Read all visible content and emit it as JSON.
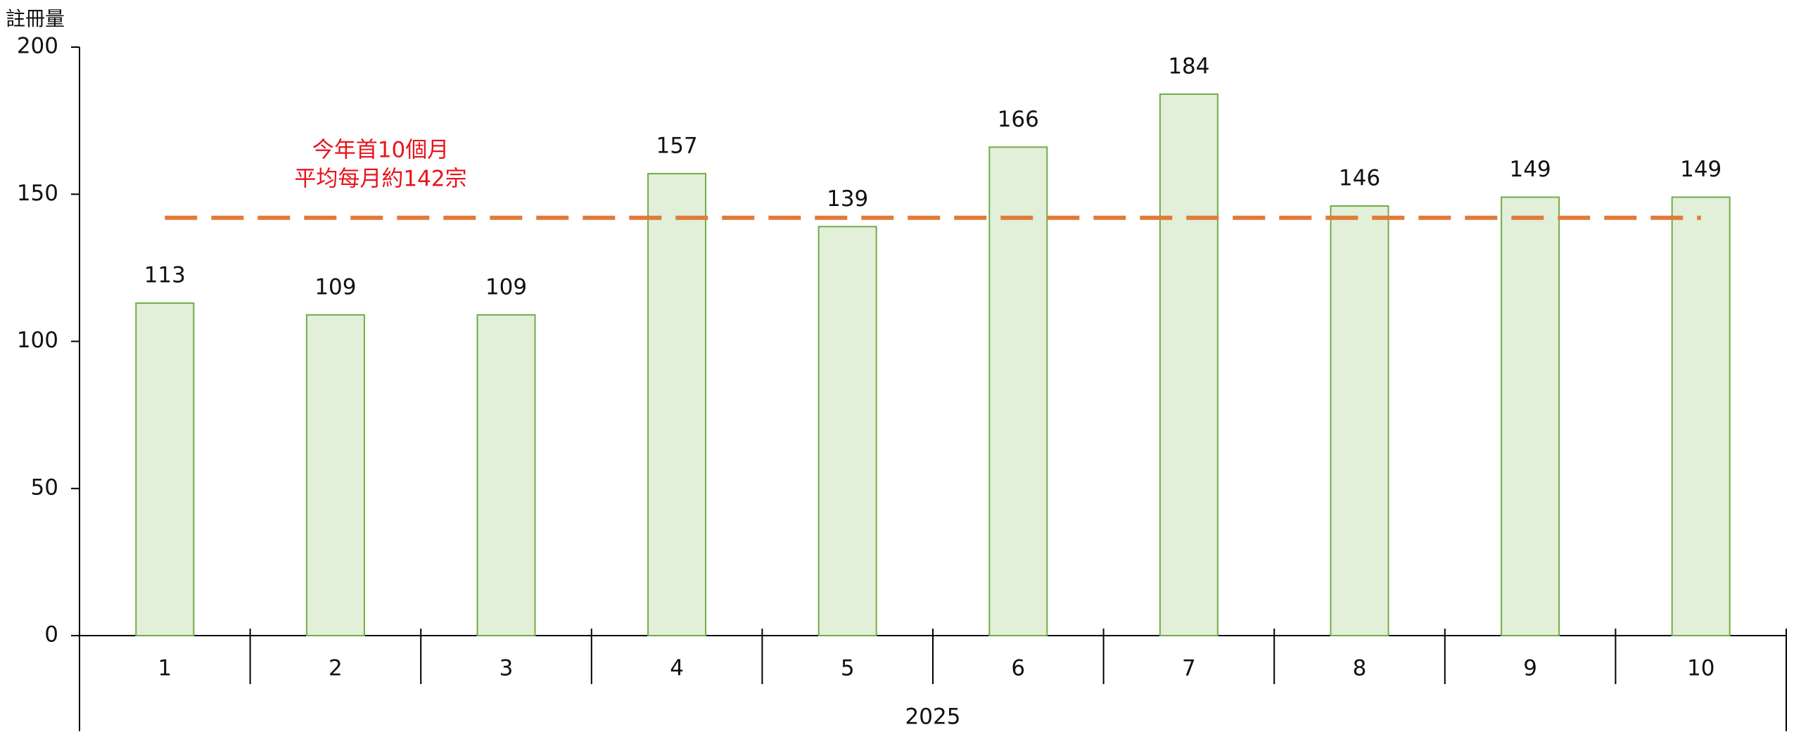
{
  "chart_data": {
    "type": "bar",
    "ylabel": "註冊量",
    "xlabel": "2025",
    "categories": [
      "1",
      "2",
      "3",
      "4",
      "5",
      "6",
      "7",
      "8",
      "9",
      "10"
    ],
    "values": [
      113,
      109,
      109,
      157,
      139,
      166,
      184,
      146,
      149,
      149
    ],
    "color": "#e2efd9",
    "edgecolor": "#70ad47",
    "ylim": [
      0,
      200
    ],
    "yticks": [
      0,
      50,
      100,
      150,
      200
    ],
    "reference_line": {
      "value": 142,
      "color": "#e07b39",
      "label": [
        "今年首10個月",
        "平均每月約142宗"
      ],
      "label_color": "#e8141b"
    }
  }
}
